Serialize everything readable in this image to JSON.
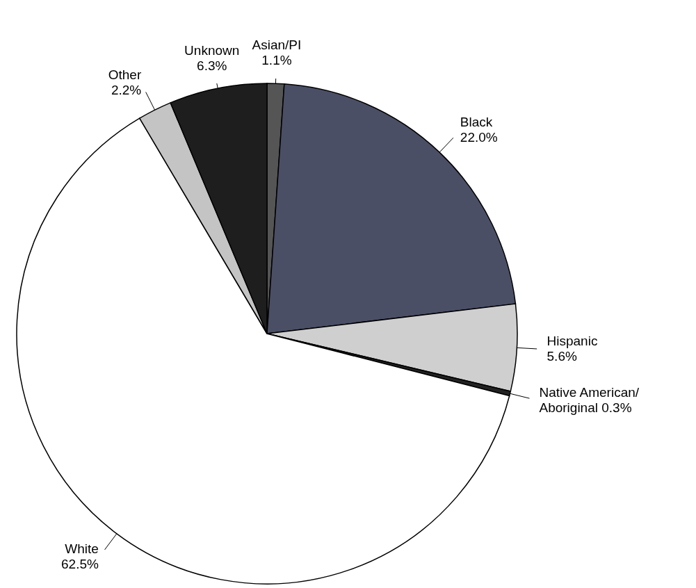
{
  "chart_data": {
    "type": "pie",
    "categories": [
      "Asian/PI",
      "Black",
      "Hispanic",
      "Native American/Aboriginal",
      "White",
      "Other",
      "Unknown"
    ],
    "values": [
      1.1,
      22.0,
      5.6,
      0.3,
      62.5,
      2.2,
      6.3
    ],
    "value_labels": [
      "1.1%",
      "22.0%",
      "5.6%",
      "0.3%",
      "62.5%",
      "2.2%",
      "6.3%"
    ],
    "colors": [
      "#555555",
      "#4a4f66",
      "#cfcfcf",
      "#222222",
      "#ffffff",
      "#c4c4c4",
      "#1e1e1e"
    ]
  }
}
